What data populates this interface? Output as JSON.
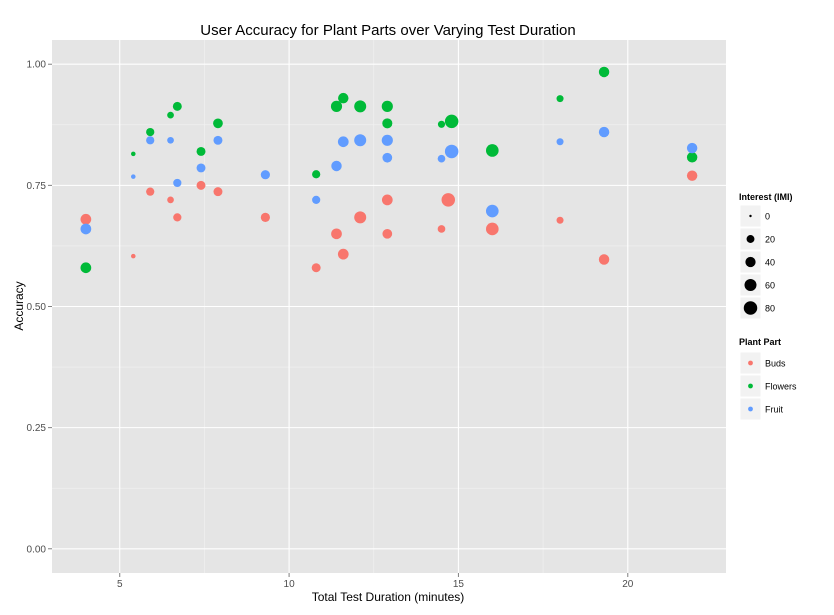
{
  "chart_data": {
    "type": "scatter",
    "title": "User Accuracy for Plant Parts over Varying Test Duration",
    "xlabel": "Total Test Duration (minutes)",
    "ylabel": "Accuracy",
    "xlim": [
      3.0,
      22.9
    ],
    "ylim": [
      -0.05,
      1.05
    ],
    "x_ticks": [
      5,
      10,
      15,
      20
    ],
    "y_ticks": [
      0.0,
      0.25,
      0.5,
      0.75,
      1.0
    ],
    "x_tick_labels": [
      "5",
      "10",
      "15",
      "20"
    ],
    "y_tick_labels": [
      "0.00",
      "0.25",
      "0.50",
      "0.75",
      "1.00"
    ],
    "grid": true,
    "size_legend": {
      "title": "Interest (IMI)",
      "values": [
        0,
        20,
        40,
        60,
        80
      ],
      "labels": [
        "0",
        "20",
        "40",
        "60",
        "80"
      ]
    },
    "color_legend": {
      "title": "Plant Part",
      "placement": "right"
    },
    "series": [
      {
        "name": "Buds",
        "color": "#F8766D",
        "points": [
          {
            "x": 4.0,
            "y": 0.68,
            "size": 45
          },
          {
            "x": 5.4,
            "y": 0.604,
            "size": 3
          },
          {
            "x": 5.9,
            "y": 0.737,
            "size": 22
          },
          {
            "x": 6.5,
            "y": 0.72,
            "size": 12
          },
          {
            "x": 6.7,
            "y": 0.684,
            "size": 22
          },
          {
            "x": 7.4,
            "y": 0.75,
            "size": 28
          },
          {
            "x": 7.9,
            "y": 0.737,
            "size": 28
          },
          {
            "x": 9.3,
            "y": 0.684,
            "size": 30
          },
          {
            "x": 10.8,
            "y": 0.58,
            "size": 28
          },
          {
            "x": 11.4,
            "y": 0.65,
            "size": 45
          },
          {
            "x": 11.6,
            "y": 0.608,
            "size": 45
          },
          {
            "x": 12.1,
            "y": 0.684,
            "size": 60
          },
          {
            "x": 12.9,
            "y": 0.72,
            "size": 45
          },
          {
            "x": 12.9,
            "y": 0.65,
            "size": 35
          },
          {
            "x": 14.5,
            "y": 0.66,
            "size": 18
          },
          {
            "x": 14.7,
            "y": 0.72,
            "size": 80
          },
          {
            "x": 16.0,
            "y": 0.66,
            "size": 68
          },
          {
            "x": 18.0,
            "y": 0.678,
            "size": 14
          },
          {
            "x": 19.3,
            "y": 0.597,
            "size": 42
          },
          {
            "x": 21.9,
            "y": 0.77,
            "size": 42
          }
        ]
      },
      {
        "name": "Flowers",
        "color": "#00BA38",
        "points": [
          {
            "x": 4.0,
            "y": 0.58,
            "size": 45
          },
          {
            "x": 5.4,
            "y": 0.815,
            "size": 3
          },
          {
            "x": 5.9,
            "y": 0.86,
            "size": 22
          },
          {
            "x": 6.5,
            "y": 0.895,
            "size": 12
          },
          {
            "x": 6.7,
            "y": 0.913,
            "size": 28
          },
          {
            "x": 7.4,
            "y": 0.82,
            "size": 28
          },
          {
            "x": 7.9,
            "y": 0.878,
            "size": 35
          },
          {
            "x": 10.8,
            "y": 0.773,
            "size": 22
          },
          {
            "x": 11.4,
            "y": 0.913,
            "size": 50
          },
          {
            "x": 11.6,
            "y": 0.93,
            "size": 42
          },
          {
            "x": 12.1,
            "y": 0.913,
            "size": 60
          },
          {
            "x": 12.9,
            "y": 0.913,
            "size": 50
          },
          {
            "x": 12.9,
            "y": 0.878,
            "size": 38
          },
          {
            "x": 14.5,
            "y": 0.876,
            "size": 15
          },
          {
            "x": 14.8,
            "y": 0.882,
            "size": 80
          },
          {
            "x": 16.0,
            "y": 0.822,
            "size": 68
          },
          {
            "x": 18.0,
            "y": 0.929,
            "size": 14
          },
          {
            "x": 19.3,
            "y": 0.984,
            "size": 42
          },
          {
            "x": 21.9,
            "y": 0.808,
            "size": 42
          }
        ]
      },
      {
        "name": "Fruit",
        "color": "#619CFF",
        "points": [
          {
            "x": 4.0,
            "y": 0.66,
            "size": 45
          },
          {
            "x": 5.4,
            "y": 0.768,
            "size": 3
          },
          {
            "x": 5.9,
            "y": 0.843,
            "size": 22
          },
          {
            "x": 6.5,
            "y": 0.843,
            "size": 12
          },
          {
            "x": 6.7,
            "y": 0.755,
            "size": 22
          },
          {
            "x": 7.4,
            "y": 0.786,
            "size": 28
          },
          {
            "x": 7.9,
            "y": 0.843,
            "size": 28
          },
          {
            "x": 9.3,
            "y": 0.772,
            "size": 30
          },
          {
            "x": 10.8,
            "y": 0.72,
            "size": 22
          },
          {
            "x": 11.4,
            "y": 0.79,
            "size": 42
          },
          {
            "x": 11.6,
            "y": 0.84,
            "size": 45
          },
          {
            "x": 12.1,
            "y": 0.843,
            "size": 60
          },
          {
            "x": 12.9,
            "y": 0.843,
            "size": 50
          },
          {
            "x": 12.9,
            "y": 0.807,
            "size": 35
          },
          {
            "x": 14.5,
            "y": 0.805,
            "size": 18
          },
          {
            "x": 14.8,
            "y": 0.82,
            "size": 80
          },
          {
            "x": 16.0,
            "y": 0.697,
            "size": 68
          },
          {
            "x": 18.0,
            "y": 0.84,
            "size": 14
          },
          {
            "x": 19.3,
            "y": 0.86,
            "size": 42
          },
          {
            "x": 21.9,
            "y": 0.827,
            "size": 42
          }
        ]
      }
    ]
  }
}
